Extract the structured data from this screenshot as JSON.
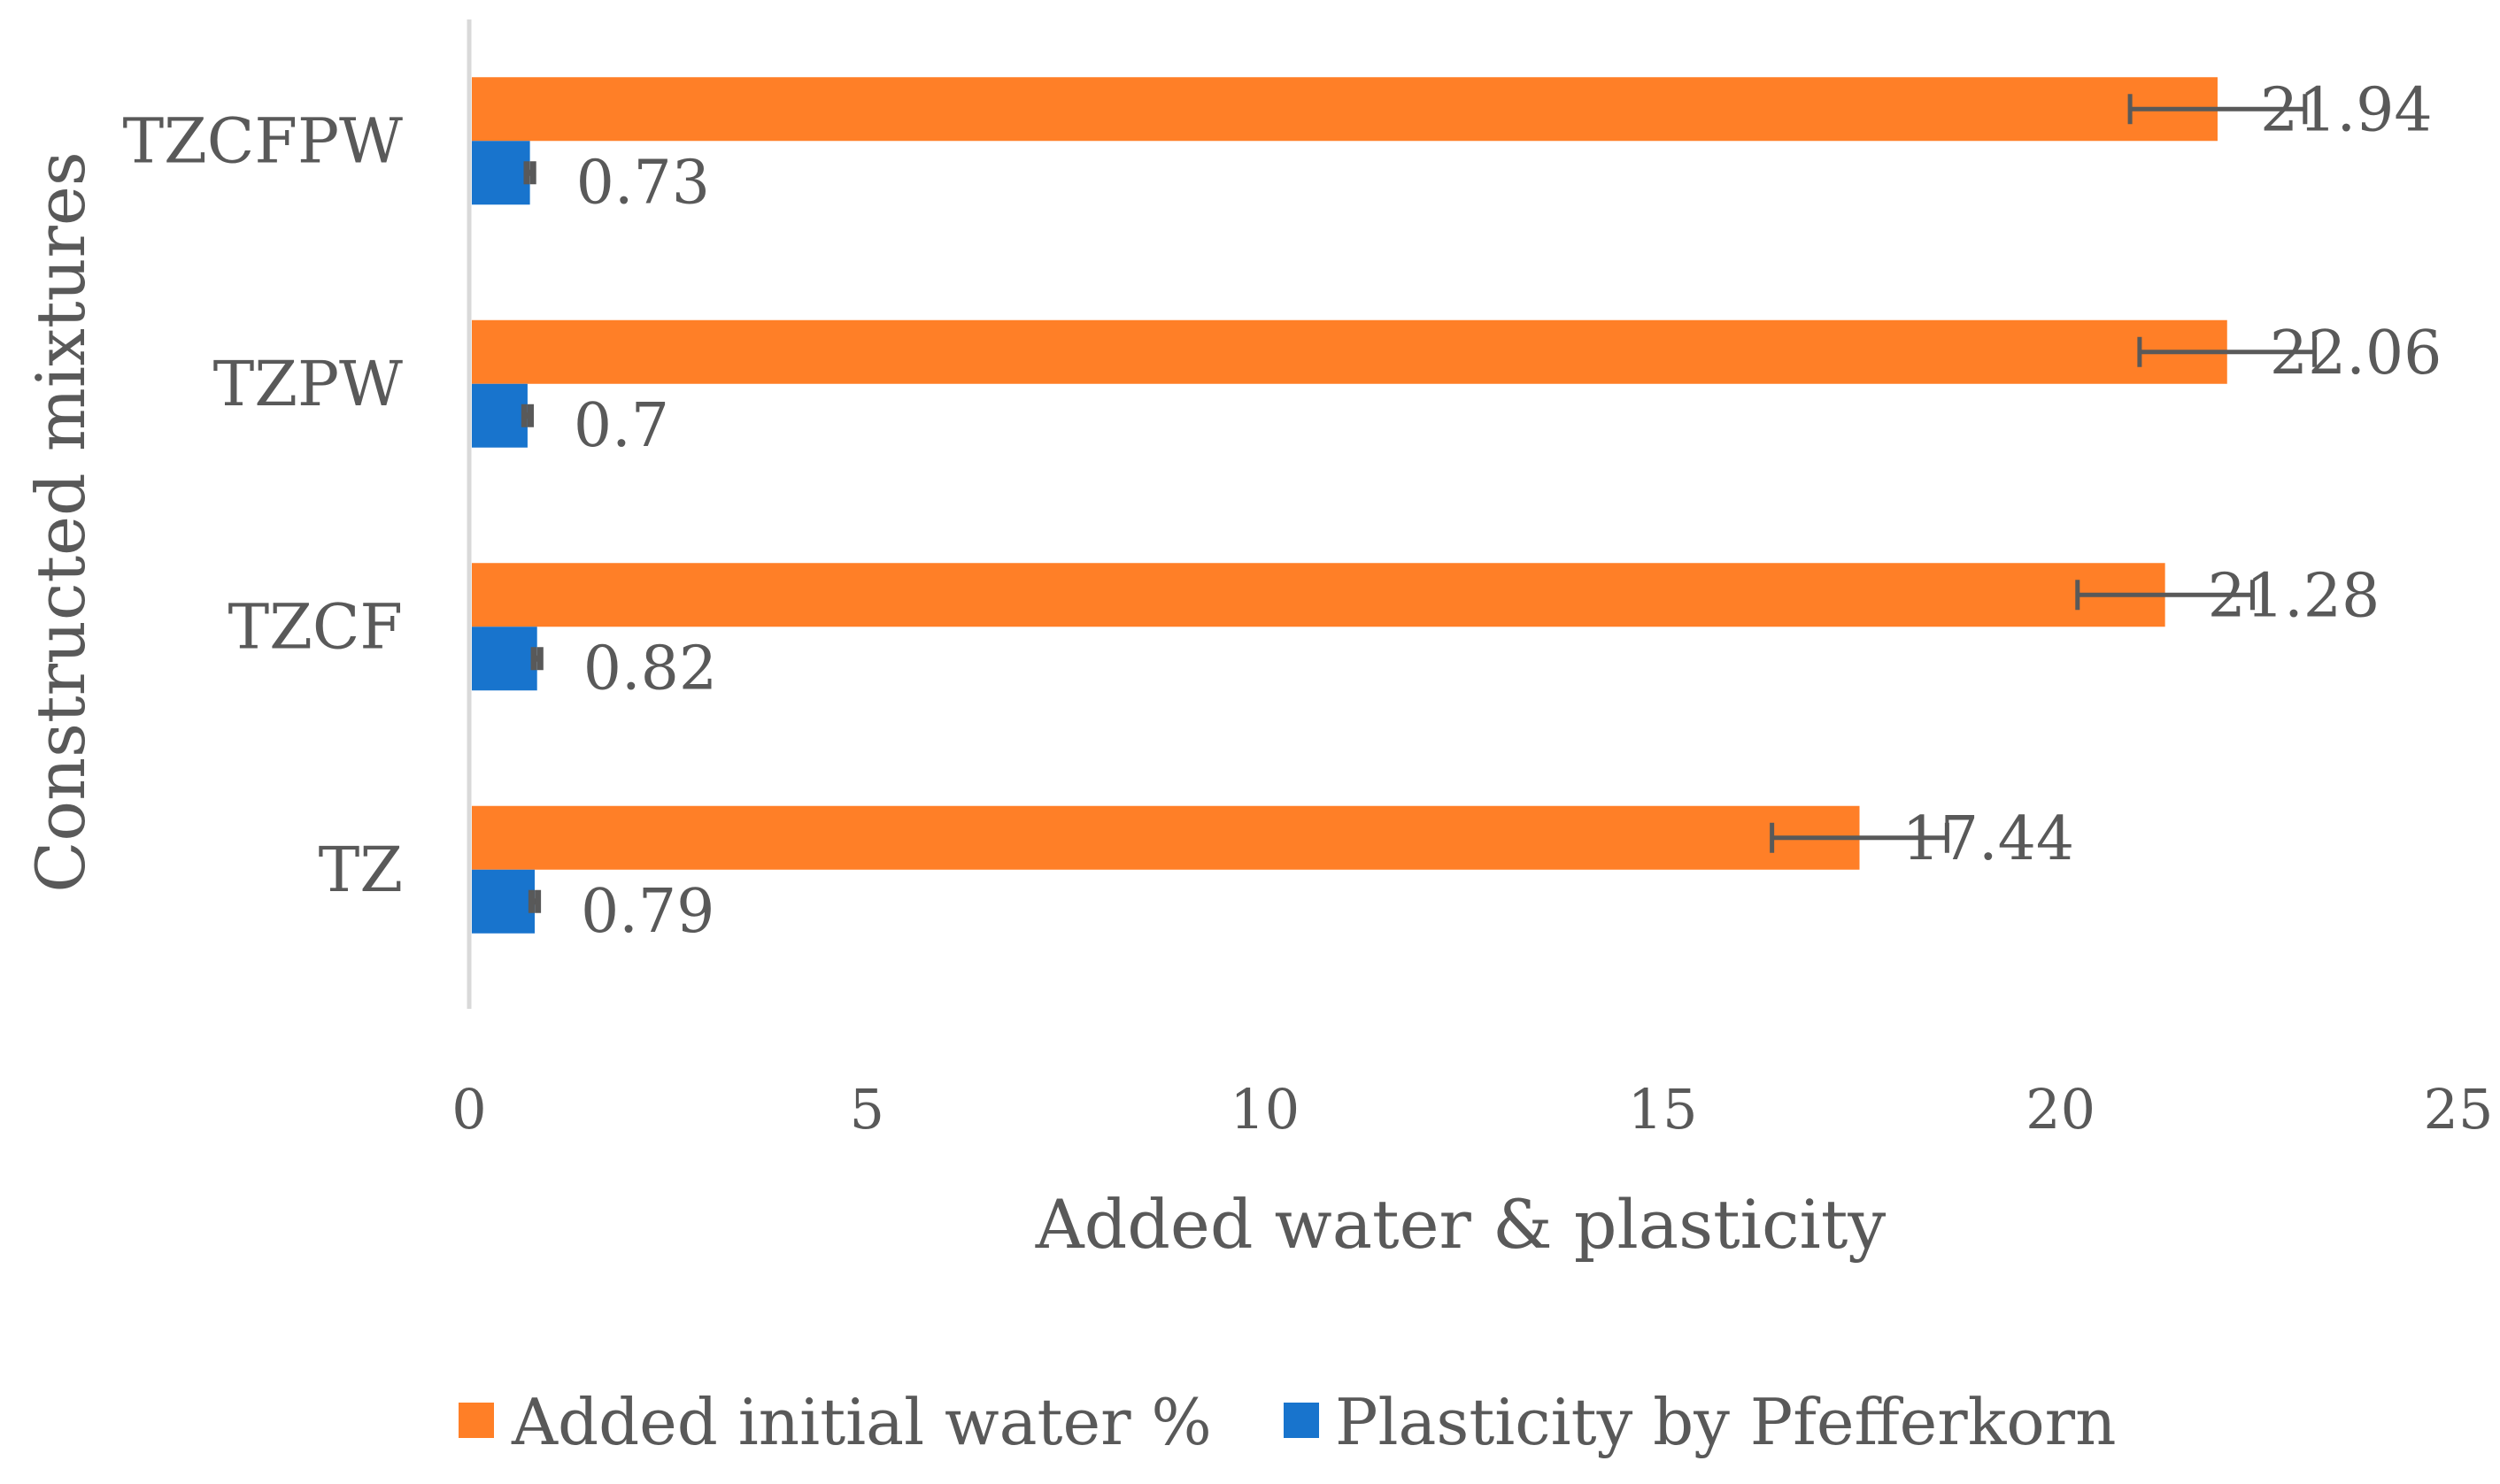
{
  "chart_data": {
    "type": "bar",
    "orientation": "horizontal",
    "title": "",
    "xlabel": "Added water & plasticity",
    "ylabel": "Constructed mixtures",
    "xlim": [
      0,
      25
    ],
    "xticks": [
      0,
      5,
      10,
      15,
      20,
      25
    ],
    "categories": [
      "TZ",
      "TZCF",
      "TZPW",
      "TZCFPW"
    ],
    "series": [
      {
        "name": "Added initial water %",
        "color": "#FF7F27",
        "values": [
          17.44,
          21.28,
          22.06,
          21.94
        ],
        "error": [
          1.1,
          1.1,
          1.1,
          1.1
        ]
      },
      {
        "name": "Plasticity by Pfefferkorn",
        "color": "#1874CD",
        "values": [
          0.79,
          0.82,
          0.7,
          0.73
        ],
        "error": [
          0.04,
          0.04,
          0.04,
          0.04
        ]
      }
    ],
    "legend": "bottom",
    "grid": false,
    "data_labels": true
  }
}
